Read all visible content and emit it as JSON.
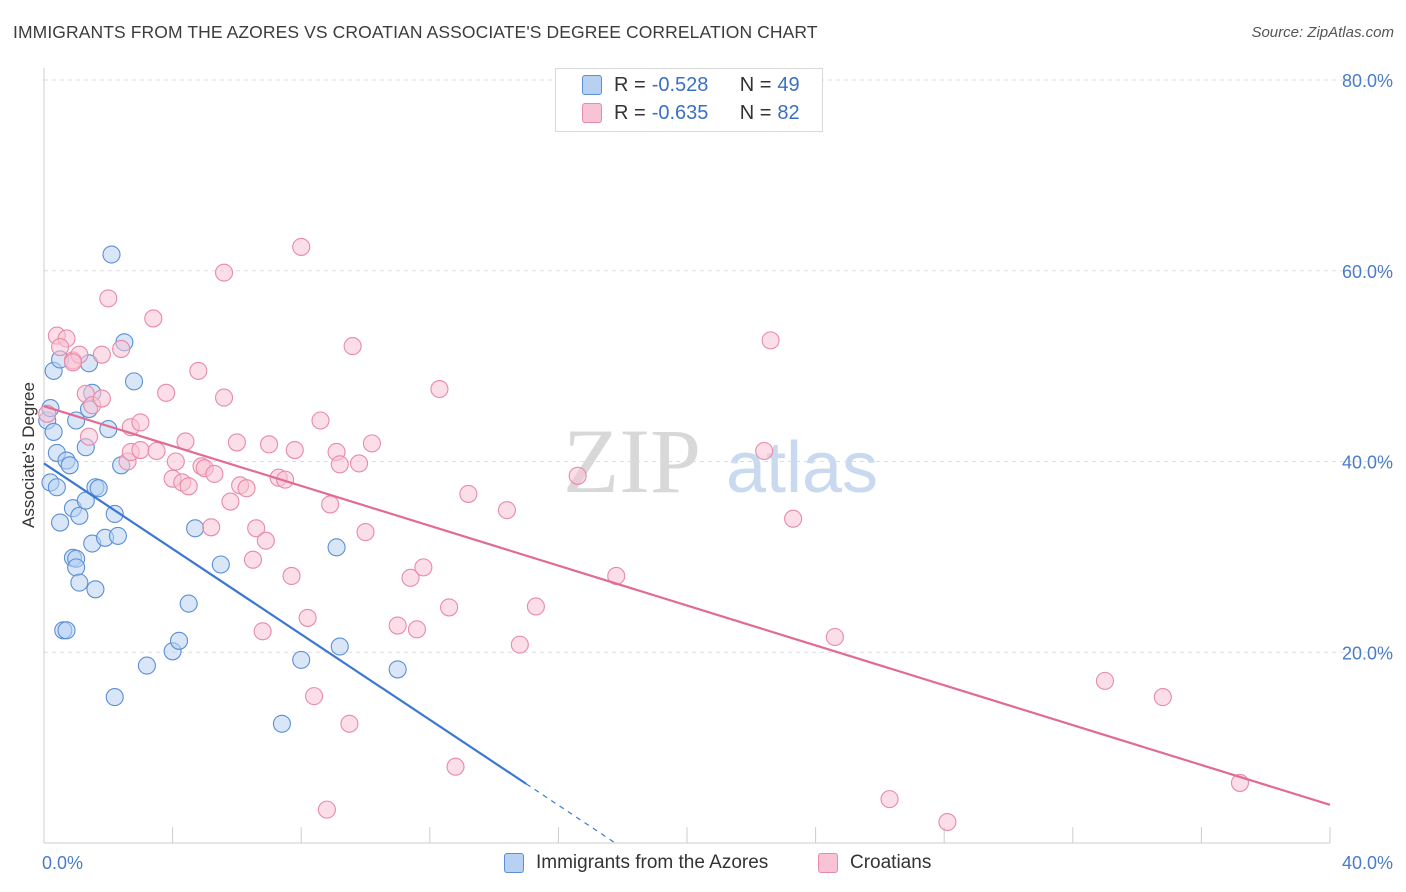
{
  "header": {
    "title": "IMMIGRANTS FROM THE AZORES VS CROATIAN ASSOCIATE'S DEGREE CORRELATION CHART",
    "source": "Source: ZipAtlas.com"
  },
  "legend_top": {
    "rows": [
      {
        "r_label": "R =",
        "r_value": "-0.528",
        "n_label": "N =",
        "n_value": "49"
      },
      {
        "r_label": "R =",
        "r_value": "-0.635",
        "n_label": "N =",
        "n_value": "82"
      }
    ]
  },
  "legend_bottom": {
    "items": [
      "Immigrants from the Azores",
      "Croatians"
    ]
  },
  "watermark": {
    "zip": "ZIP",
    "atlas": "atlas"
  },
  "colors": {
    "blue_fill": "#b8d1f3",
    "blue_stroke": "#5b8fd6",
    "blue_line": "#3b78d4",
    "pink_fill": "#f8c3d4",
    "pink_stroke": "#e88aa8",
    "pink_line": "#e06b94",
    "tick_label": "#4a7cc9",
    "grid": "#dddddd"
  },
  "chart_data": {
    "type": "scatter",
    "title": "IMMIGRANTS FROM THE AZORES VS CROATIAN ASSOCIATE'S DEGREE CORRELATION CHART",
    "xlabel": "",
    "ylabel": "Associate's Degree",
    "xlim": [
      0,
      40
    ],
    "ylim": [
      0,
      80
    ],
    "x_tick_labels": [
      "0.0%",
      "40.0%"
    ],
    "y_ticks": [
      20,
      40,
      60,
      80
    ],
    "y_tick_labels": [
      "20.0%",
      "40.0%",
      "60.0%",
      "80.0%"
    ],
    "grid": true,
    "series": [
      {
        "name": "Immigrants from the Azores",
        "R": -0.528,
        "N": 49,
        "trend": {
          "x0": 0.0,
          "y0": 39.8,
          "x1": 15.0,
          "y1": 6.2,
          "dashed_to_x": 17.8
        },
        "points": [
          [
            0.1,
            44.3
          ],
          [
            0.3,
            43.1
          ],
          [
            0.4,
            40.9
          ],
          [
            0.2,
            37.8
          ],
          [
            0.4,
            37.3
          ],
          [
            0.5,
            33.6
          ],
          [
            0.7,
            40.1
          ],
          [
            0.8,
            39.6
          ],
          [
            0.9,
            35.1
          ],
          [
            0.9,
            29.9
          ],
          [
            1.0,
            29.8
          ],
          [
            1.0,
            28.9
          ],
          [
            1.1,
            34.3
          ],
          [
            1.1,
            27.3
          ],
          [
            1.3,
            35.9
          ],
          [
            1.3,
            41.5
          ],
          [
            1.4,
            45.5
          ],
          [
            1.5,
            31.4
          ],
          [
            1.6,
            37.3
          ],
          [
            1.6,
            26.6
          ],
          [
            1.7,
            37.2
          ],
          [
            1.9,
            32.0
          ],
          [
            2.2,
            34.5
          ],
          [
            2.3,
            32.2
          ],
          [
            2.4,
            39.6
          ],
          [
            2.5,
            52.5
          ],
          [
            2.8,
            48.4
          ],
          [
            3.2,
            18.6
          ],
          [
            4.0,
            20.1
          ],
          [
            4.2,
            21.2
          ],
          [
            4.5,
            25.1
          ],
          [
            4.7,
            33.0
          ],
          [
            5.5,
            29.2
          ],
          [
            0.3,
            49.5
          ],
          [
            0.5,
            50.7
          ],
          [
            1.4,
            50.3
          ],
          [
            1.5,
            47.2
          ],
          [
            2.0,
            43.4
          ],
          [
            0.2,
            45.6
          ],
          [
            0.6,
            22.3
          ],
          [
            0.7,
            22.3
          ],
          [
            2.1,
            61.7
          ],
          [
            7.4,
            12.5
          ],
          [
            8.0,
            19.2
          ],
          [
            9.1,
            31.0
          ],
          [
            9.2,
            20.6
          ],
          [
            11.0,
            18.2
          ],
          [
            2.2,
            15.3
          ],
          [
            1.0,
            44.3
          ]
        ]
      },
      {
        "name": "Croatians",
        "R": -0.635,
        "N": 82,
        "trend": {
          "x0": 0.0,
          "y0": 45.8,
          "x1": 40.0,
          "y1": 4.0
        },
        "points": [
          [
            0.1,
            45.0
          ],
          [
            0.4,
            53.2
          ],
          [
            0.7,
            52.9
          ],
          [
            0.9,
            50.6
          ],
          [
            1.1,
            51.2
          ],
          [
            1.3,
            47.1
          ],
          [
            1.5,
            45.9
          ],
          [
            1.4,
            42.6
          ],
          [
            1.8,
            46.6
          ],
          [
            2.0,
            57.1
          ],
          [
            2.4,
            51.8
          ],
          [
            1.8,
            51.2
          ],
          [
            2.6,
            40.0
          ],
          [
            2.7,
            43.6
          ],
          [
            2.7,
            41.0
          ],
          [
            3.0,
            44.1
          ],
          [
            3.0,
            41.2
          ],
          [
            3.4,
            55.0
          ],
          [
            3.5,
            41.1
          ],
          [
            3.8,
            47.2
          ],
          [
            4.0,
            38.2
          ],
          [
            4.1,
            40.0
          ],
          [
            4.3,
            37.8
          ],
          [
            4.4,
            42.1
          ],
          [
            4.5,
            37.4
          ],
          [
            4.8,
            49.5
          ],
          [
            4.9,
            39.5
          ],
          [
            5.0,
            39.3
          ],
          [
            5.2,
            33.1
          ],
          [
            5.3,
            38.7
          ],
          [
            5.6,
            46.7
          ],
          [
            5.6,
            59.8
          ],
          [
            5.8,
            35.8
          ],
          [
            6.0,
            42.0
          ],
          [
            6.1,
            37.5
          ],
          [
            6.3,
            37.2
          ],
          [
            6.5,
            29.7
          ],
          [
            6.6,
            33.0
          ],
          [
            6.8,
            22.2
          ],
          [
            6.9,
            31.7
          ],
          [
            7.0,
            41.8
          ],
          [
            7.3,
            38.3
          ],
          [
            7.5,
            38.1
          ],
          [
            7.7,
            28.0
          ],
          [
            7.8,
            41.2
          ],
          [
            8.0,
            62.5
          ],
          [
            8.2,
            23.6
          ],
          [
            8.4,
            15.4
          ],
          [
            8.6,
            44.3
          ],
          [
            8.8,
            3.5
          ],
          [
            8.9,
            35.5
          ],
          [
            9.1,
            41.0
          ],
          [
            9.2,
            39.7
          ],
          [
            9.5,
            12.5
          ],
          [
            9.6,
            52.1
          ],
          [
            9.8,
            39.8
          ],
          [
            10.0,
            32.6
          ],
          [
            10.2,
            41.9
          ],
          [
            11.0,
            22.8
          ],
          [
            11.4,
            27.8
          ],
          [
            11.6,
            22.4
          ],
          [
            11.8,
            28.9
          ],
          [
            12.3,
            47.6
          ],
          [
            12.6,
            24.7
          ],
          [
            12.8,
            8.0
          ],
          [
            13.2,
            36.6
          ],
          [
            14.4,
            34.9
          ],
          [
            14.8,
            20.8
          ],
          [
            15.3,
            24.8
          ],
          [
            16.6,
            38.5
          ],
          [
            17.8,
            28.0
          ],
          [
            22.4,
            41.1
          ],
          [
            22.6,
            52.7
          ],
          [
            23.3,
            34.0
          ],
          [
            24.6,
            21.6
          ],
          [
            26.3,
            4.6
          ],
          [
            28.1,
            2.2
          ],
          [
            33.0,
            17.0
          ],
          [
            34.8,
            15.3
          ],
          [
            37.2,
            6.3
          ],
          [
            0.5,
            52.0
          ],
          [
            0.9,
            50.4
          ]
        ]
      }
    ]
  }
}
